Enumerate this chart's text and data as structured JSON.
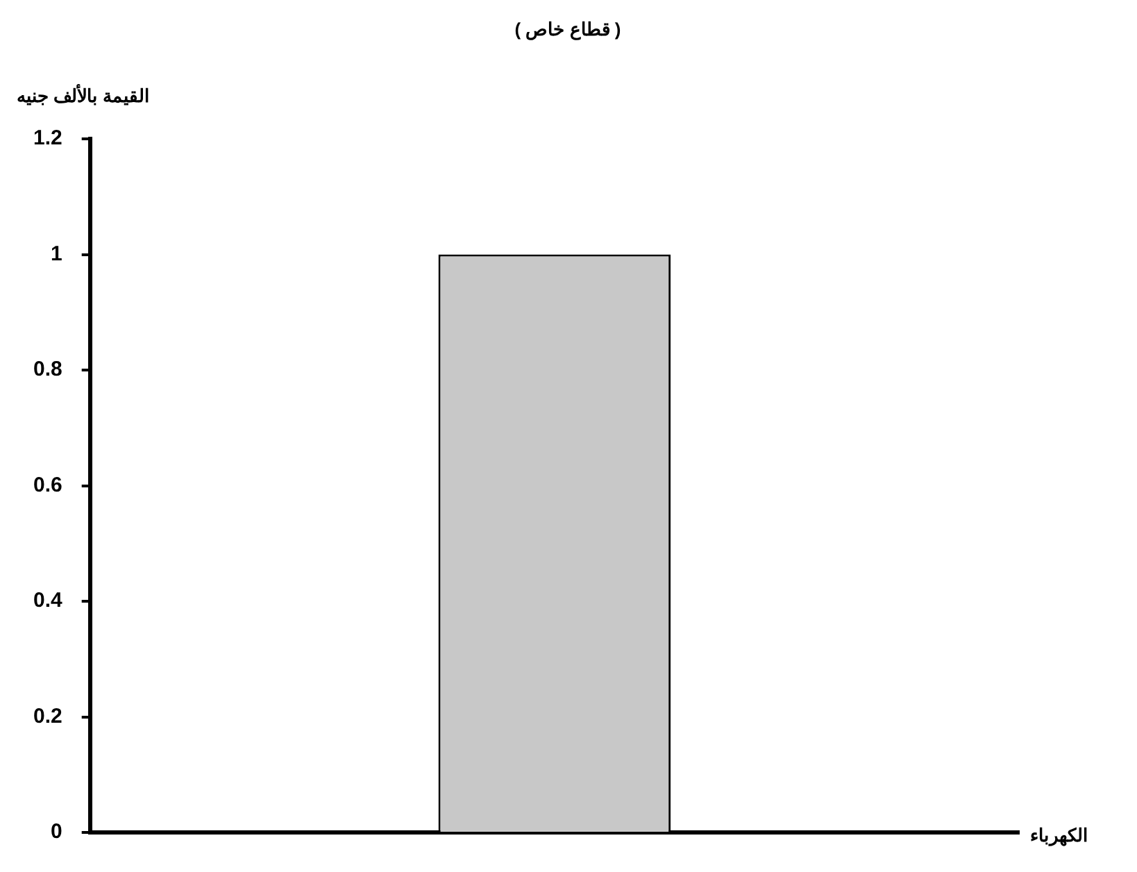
{
  "chart_data": {
    "type": "bar",
    "title": "( قطاع خاص )",
    "ylabel": "القيمة بالألف جنيه",
    "xlabel": "الكهرباء",
    "categories": [
      null
    ],
    "values": [
      1
    ],
    "color": "#c8c8c8",
    "ylim": [
      0,
      1.2
    ],
    "yticks": [
      0,
      0.2,
      0.4,
      0.6,
      0.8,
      1,
      1.2
    ],
    "grid": false,
    "legend": false
  }
}
